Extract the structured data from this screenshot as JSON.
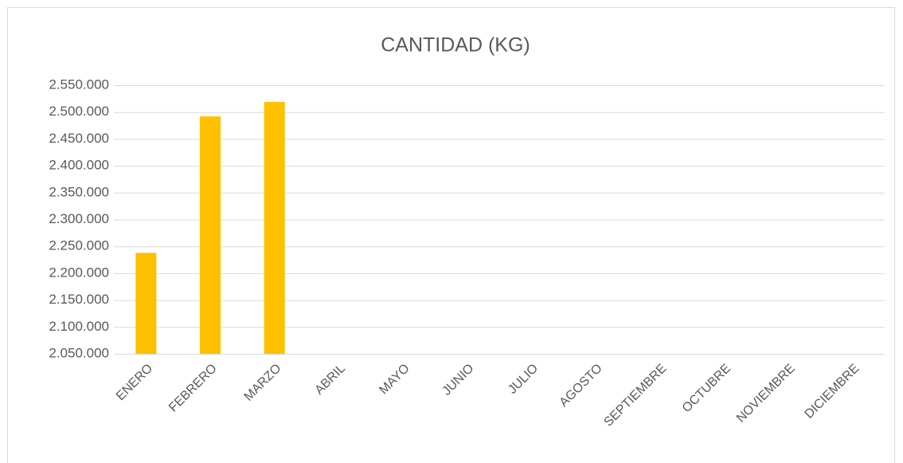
{
  "chart_data": {
    "type": "bar",
    "title": "CANTIDAD (KG)",
    "categories": [
      "ENERO",
      "FEBRERO",
      "MARZO",
      "ABRIL",
      "MAYO",
      "JUNIO",
      "JULIO",
      "AGOSTO",
      "SEPTIEMBRE",
      "OCTUBRE",
      "NOVIEMBRE",
      "DICIEMBRE"
    ],
    "values": [
      2238000,
      2492000,
      2519000,
      null,
      null,
      null,
      null,
      null,
      null,
      null,
      null,
      null
    ],
    "color": "#ffc000",
    "ylim": [
      2050000,
      2550000
    ],
    "yticks": [
      {
        "value": 2050000,
        "label": "2.050.000"
      },
      {
        "value": 2100000,
        "label": "2.100.000"
      },
      {
        "value": 2150000,
        "label": "2.150.000"
      },
      {
        "value": 2200000,
        "label": "2.200.000"
      },
      {
        "value": 2250000,
        "label": "2.250.000"
      },
      {
        "value": 2300000,
        "label": "2.300.000"
      },
      {
        "value": 2350000,
        "label": "2.350.000"
      },
      {
        "value": 2400000,
        "label": "2.400.000"
      },
      {
        "value": 2450000,
        "label": "2.450.000"
      },
      {
        "value": 2500000,
        "label": "2.500.000"
      },
      {
        "value": 2550000,
        "label": "2.550.000"
      }
    ],
    "grid": true
  }
}
